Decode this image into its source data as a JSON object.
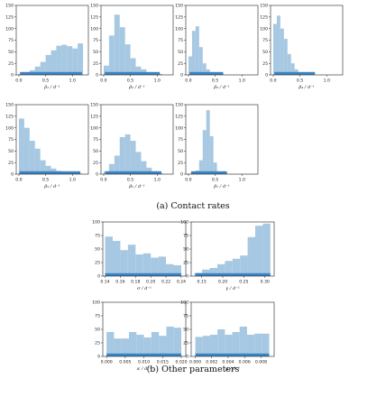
{
  "captions": {
    "contact": "(a) Contact rates",
    "other": "(b) Other parameters"
  },
  "colors": {
    "bar": "#a6c8e2",
    "rug": "#3b84c2"
  },
  "chart_data": [
    {
      "type": "bar",
      "xlabel": "β₁ / d⁻¹",
      "xlim": [
        -0.05,
        1.3
      ],
      "xticks": [
        "0.0",
        "0.5",
        "1.0"
      ],
      "xtick_values": [
        0,
        0.5,
        1.0
      ],
      "ylim": [
        0,
        150
      ],
      "yticks": [
        0,
        25,
        50,
        75,
        100,
        125,
        150
      ],
      "bin_edges": [
        0.0,
        0.1,
        0.2,
        0.3,
        0.4,
        0.5,
        0.6,
        0.7,
        0.8,
        0.9,
        1.0,
        1.1,
        1.2
      ],
      "values": [
        2,
        5,
        10,
        18,
        28,
        43,
        53,
        63,
        65,
        62,
        57,
        68
      ],
      "rug_range": [
        0.02,
        1.18
      ]
    },
    {
      "type": "bar",
      "xlabel": "β₂ / d⁻¹",
      "xlim": [
        -0.05,
        1.3
      ],
      "xticks": [
        "0.0",
        "0.5",
        "1.0"
      ],
      "xtick_values": [
        0,
        0.5,
        1.0
      ],
      "ylim": [
        0,
        150
      ],
      "yticks": [
        0,
        25,
        50,
        75,
        100,
        125,
        150
      ],
      "bin_edges": [
        0.0,
        0.1,
        0.2,
        0.3,
        0.4,
        0.5,
        0.6,
        0.7,
        0.8,
        0.9,
        1.0,
        1.1
      ],
      "values": [
        20,
        85,
        130,
        103,
        66,
        36,
        18,
        12,
        5,
        3,
        2
      ],
      "rug_range": [
        0.02,
        1.05
      ]
    },
    {
      "type": "bar",
      "xlabel": "β₃ / d⁻¹",
      "xlim": [
        -0.05,
        1.3
      ],
      "xticks": [
        "0.0",
        "0.5",
        "1.0"
      ],
      "xtick_values": [
        0,
        0.5,
        1.0
      ],
      "ylim": [
        0,
        150
      ],
      "yticks": [
        0,
        25,
        50,
        75,
        100,
        125,
        150
      ],
      "bin_edges": [
        0.0,
        0.067,
        0.133,
        0.2,
        0.267,
        0.333,
        0.4,
        0.467,
        0.533,
        0.6,
        0.667
      ],
      "values": [
        40,
        95,
        105,
        60,
        25,
        12,
        5,
        3,
        1,
        1
      ],
      "rug_range": [
        0.02,
        0.65
      ]
    },
    {
      "type": "bar",
      "xlabel": "β₄ / d⁻¹",
      "xlim": [
        -0.05,
        1.3
      ],
      "xticks": [
        "0.0",
        "0.5",
        "1.0"
      ],
      "xtick_values": [
        0,
        0.5,
        1.0
      ],
      "ylim": [
        0,
        150
      ],
      "yticks": [
        0,
        25,
        50,
        75,
        100,
        125,
        150
      ],
      "bin_edges": [
        0.0,
        0.067,
        0.133,
        0.2,
        0.267,
        0.333,
        0.4,
        0.467,
        0.533,
        0.6,
        0.667,
        0.733,
        0.8
      ],
      "values": [
        110,
        128,
        100,
        78,
        45,
        25,
        12,
        6,
        3,
        2,
        1,
        1
      ],
      "rug_range": [
        0.02,
        0.78
      ]
    },
    {
      "type": "bar",
      "xlabel": "β₅ / d⁻¹",
      "xlim": [
        -0.05,
        1.3
      ],
      "xticks": [
        "0.0",
        "0.5",
        "1.0"
      ],
      "xtick_values": [
        0,
        0.5,
        1.0
      ],
      "ylim": [
        0,
        150
      ],
      "yticks": [
        0,
        25,
        50,
        75,
        100,
        125,
        150
      ],
      "bin_edges": [
        0.0,
        0.1,
        0.2,
        0.3,
        0.4,
        0.5,
        0.6,
        0.7,
        0.8,
        0.9,
        1.0,
        1.1,
        1.2
      ],
      "values": [
        120,
        100,
        72,
        55,
        30,
        18,
        12,
        7,
        4,
        2,
        1,
        1
      ],
      "rug_range": [
        0.01,
        1.15
      ]
    },
    {
      "type": "bar",
      "xlabel": "β₆ / d⁻¹",
      "xlim": [
        -0.05,
        1.3
      ],
      "xticks": [
        "0.0",
        "0.5",
        "1.0"
      ],
      "xtick_values": [
        0,
        0.5,
        1.0
      ],
      "ylim": [
        0,
        150
      ],
      "yticks": [
        0,
        25,
        50,
        75,
        100,
        125,
        150
      ],
      "bin_edges": [
        0.0,
        0.1,
        0.2,
        0.3,
        0.4,
        0.5,
        0.6,
        0.7,
        0.8,
        0.9,
        1.0,
        1.1
      ],
      "values": [
        6,
        22,
        40,
        80,
        86,
        72,
        48,
        28,
        14,
        6,
        2
      ],
      "rug_range": [
        0.03,
        1.08
      ]
    },
    {
      "type": "bar",
      "xlabel": "β₇ / d⁻¹",
      "xlim": [
        -0.05,
        1.3
      ],
      "xticks": [
        "0.0",
        "0.5",
        "1.0"
      ],
      "xtick_values": [
        0,
        0.5,
        1.0
      ],
      "ylim": [
        0,
        150
      ],
      "yticks": [
        0,
        25,
        50,
        75,
        100,
        125,
        150
      ],
      "bin_edges": [
        0.0,
        0.067,
        0.133,
        0.2,
        0.267,
        0.333,
        0.4,
        0.467,
        0.533,
        0.6,
        0.667,
        0.733
      ],
      "values": [
        1,
        3,
        8,
        30,
        95,
        138,
        82,
        25,
        5,
        2,
        1
      ],
      "rug_range": [
        0.05,
        0.72
      ]
    },
    {
      "type": "bar",
      "xlabel": "σ / d⁻¹",
      "xlim": [
        0.137,
        0.246
      ],
      "xticks": [
        "0.14",
        "0.16",
        "0.18",
        "0.20",
        "0.22",
        "0.24"
      ],
      "xtick_values": [
        0.14,
        0.16,
        0.18,
        0.2,
        0.22,
        0.24
      ],
      "ylim": [
        0,
        100
      ],
      "yticks": [
        0,
        25,
        50,
        75,
        100
      ],
      "bin_edges": [
        0.14,
        0.15,
        0.16,
        0.17,
        0.18,
        0.19,
        0.2,
        0.21,
        0.22,
        0.23,
        0.24
      ],
      "values": [
        73,
        65,
        48,
        58,
        40,
        42,
        34,
        36,
        22,
        20
      ],
      "rug_range": [
        0.14,
        0.24
      ]
    },
    {
      "type": "bar",
      "xlabel": "γ / d⁻¹",
      "xlim": [
        0.125,
        0.322
      ],
      "xticks": [
        "0.15",
        "0.20",
        "0.25",
        "0.30"
      ],
      "xtick_values": [
        0.15,
        0.2,
        0.25,
        0.3
      ],
      "ylim": [
        0,
        100
      ],
      "yticks": [
        0,
        25,
        50,
        75,
        100
      ],
      "bin_edges": [
        0.133,
        0.151,
        0.169,
        0.187,
        0.205,
        0.223,
        0.241,
        0.259,
        0.277,
        0.295,
        0.313
      ],
      "values": [
        6,
        12,
        15,
        22,
        28,
        32,
        38,
        72,
        93,
        97
      ],
      "rug_range": [
        0.135,
        0.313
      ]
    },
    {
      "type": "bar",
      "xlabel": "κ / d⁻¹",
      "xlim": [
        -0.001,
        0.0212
      ],
      "xticks": [
        "0.000",
        "0.005",
        "0.010",
        "0.015",
        "0.020"
      ],
      "xtick_values": [
        0,
        0.005,
        0.01,
        0.015,
        0.02
      ],
      "ylim": [
        0,
        100
      ],
      "yticks": [
        0,
        25,
        50,
        75,
        100
      ],
      "bin_edges": [
        0.0,
        0.002,
        0.004,
        0.006,
        0.008,
        0.01,
        0.012,
        0.014,
        0.016,
        0.018,
        0.02
      ],
      "values": [
        45,
        33,
        33,
        45,
        40,
        35,
        45,
        38,
        55,
        53
      ],
      "rug_range": [
        0.0,
        0.02
      ]
    },
    {
      "type": "bar",
      "xlabel": "μ / d⁻¹",
      "xlim": [
        -0.0005,
        0.0096
      ],
      "xticks": [
        "0.000",
        "0.002",
        "0.004",
        "0.006",
        "0.008"
      ],
      "xtick_values": [
        0,
        0.002,
        0.004,
        0.006,
        0.008
      ],
      "ylim": [
        0,
        100
      ],
      "yticks": [
        0,
        25,
        50,
        75,
        100
      ],
      "bin_edges": [
        0.0,
        0.0009,
        0.0018,
        0.0027,
        0.0036,
        0.0045,
        0.0054,
        0.0063,
        0.0072,
        0.0081,
        0.009
      ],
      "values": [
        36,
        38,
        40,
        50,
        40,
        45,
        55,
        40,
        42,
        42
      ],
      "rug_range": [
        0.0,
        0.009
      ]
    }
  ]
}
